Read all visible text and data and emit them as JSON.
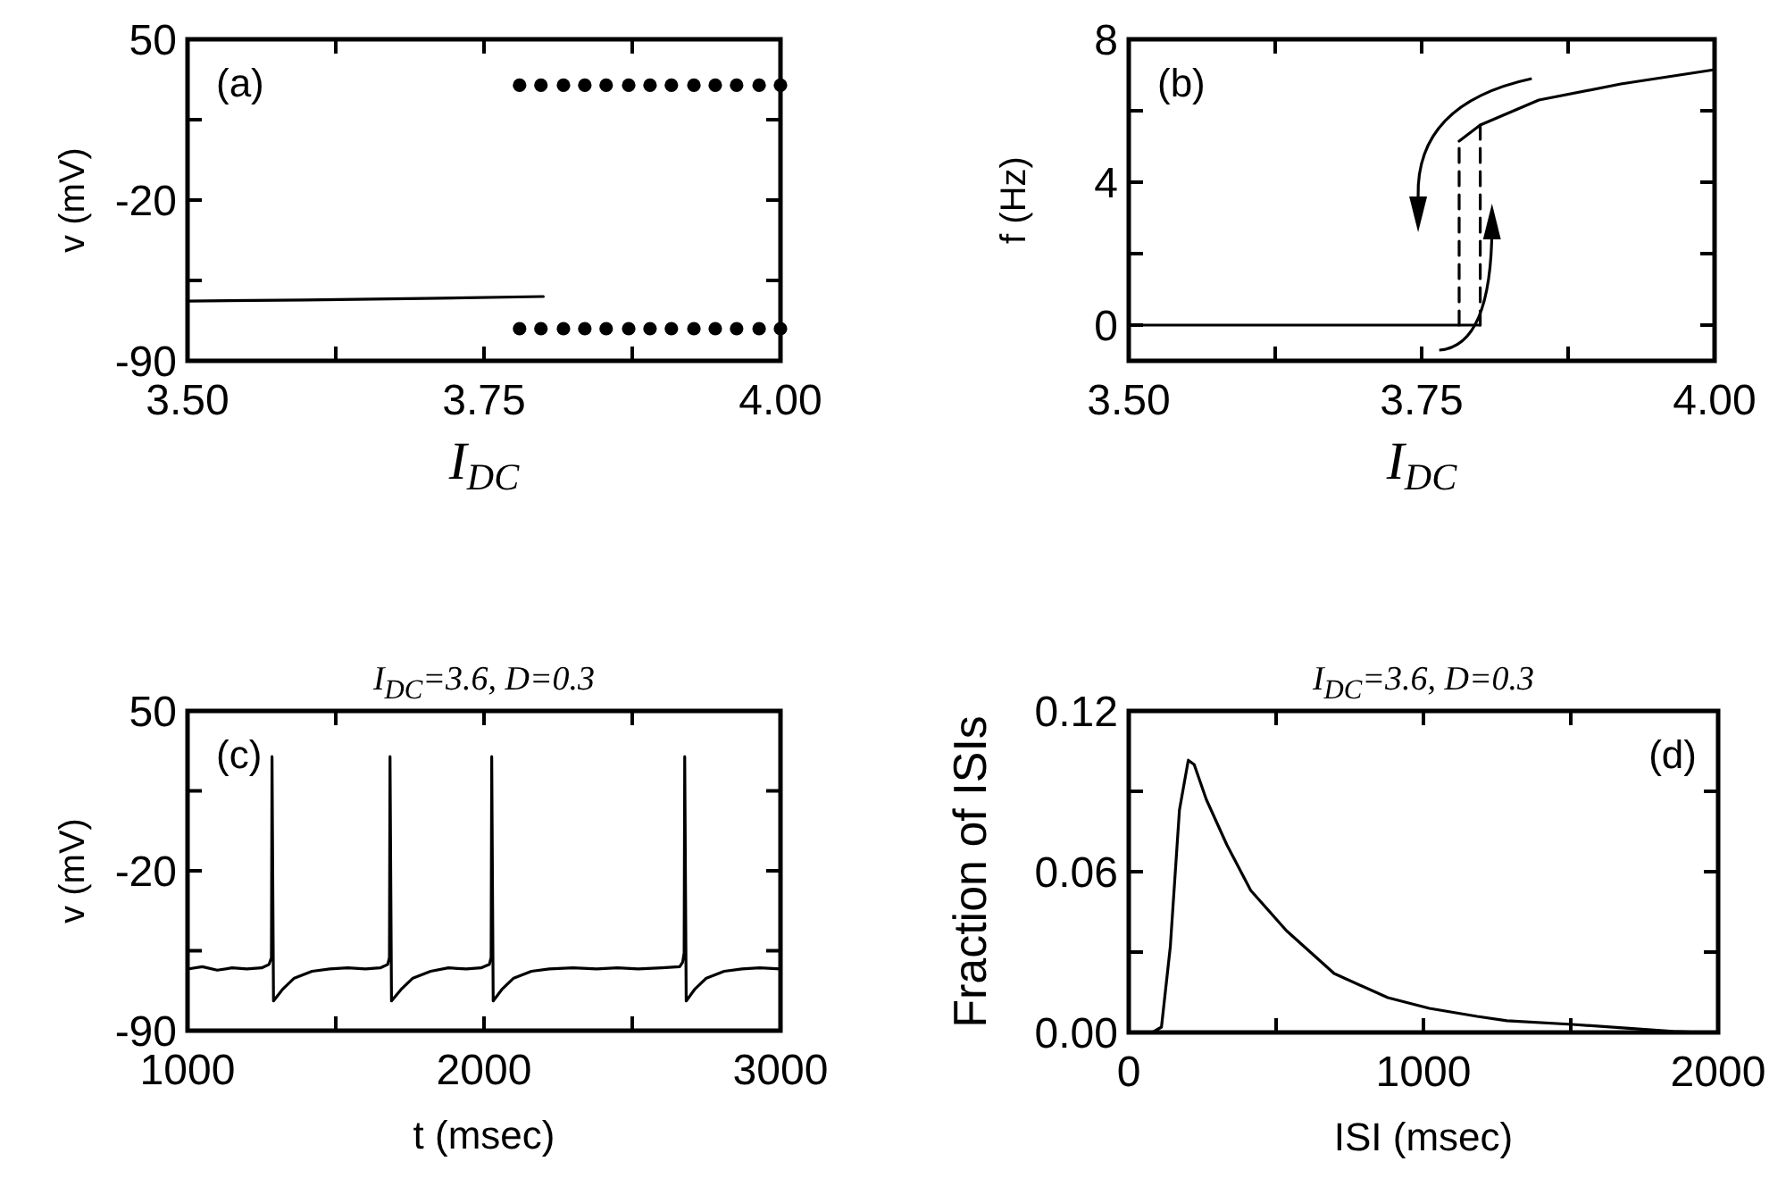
{
  "chart_data": [
    {
      "type": "line",
      "xlabel": "I$_{DC}$",
      "ylabel": "v (mV)",
      "annotations": [
        "(a)"
      ],
      "xlim": [
        3.5,
        4.0
      ],
      "ylim": [
        -90,
        50
      ],
      "xticks": [
        {
          "value": 3.5,
          "label": "3.50"
        },
        {
          "value": 3.625,
          "label": null
        },
        {
          "value": 3.75,
          "label": "3.75"
        },
        {
          "value": 3.875,
          "label": null
        },
        {
          "value": 4.0,
          "label": "4.00"
        }
      ],
      "yticks": [
        -90,
        {
          "value": -55,
          "label": null
        },
        -20,
        {
          "value": 15,
          "label": null
        },
        50
      ],
      "grid": false,
      "series": [
        {
          "color": "#000000",
          "x": [
            3.5,
            3.6,
            3.7,
            3.8
          ],
          "values": [
            -64,
            -63.5,
            -62.8,
            -62
          ]
        },
        {
          "type": "scatter",
          "marker": "circle",
          "color": "#000000",
          "x": [
            3.78,
            3.798,
            3.817,
            3.835,
            3.853,
            3.872,
            3.89,
            3.908,
            3.927,
            3.945,
            3.963,
            3.982,
            4.0
          ],
          "values": [
            30,
            30,
            30,
            30,
            30,
            30,
            30,
            30,
            30,
            30,
            30,
            30,
            30
          ]
        },
        {
          "type": "scatter",
          "marker": "circle",
          "color": "#000000",
          "x": [
            3.78,
            3.798,
            3.817,
            3.835,
            3.853,
            3.872,
            3.89,
            3.908,
            3.927,
            3.945,
            3.963,
            3.982,
            4.0
          ],
          "values": [
            -76,
            -76,
            -76,
            -76,
            -76,
            -76,
            -76,
            -76,
            -76,
            -76,
            -76,
            -76,
            -76
          ]
        }
      ]
    },
    {
      "type": "line",
      "xlabel": "I$_{DC}$",
      "ylabel": "f (Hz)",
      "annotations": [
        "(b)"
      ],
      "xlim": [
        3.5,
        4.0
      ],
      "ylim": [
        -1,
        8
      ],
      "xticks": [
        {
          "value": 3.5,
          "label": "3.50"
        },
        {
          "value": 3.625,
          "label": null
        },
        {
          "value": 3.75,
          "label": "3.75"
        },
        {
          "value": 3.875,
          "label": null
        },
        {
          "value": 4.0,
          "label": "4.00"
        }
      ],
      "yticks": [
        0,
        {
          "value": 2,
          "label": null
        },
        4,
        {
          "value": 6,
          "label": null
        },
        8
      ],
      "grid": false,
      "series": [
        {
          "color": "#000000",
          "x": [
            3.5,
            3.8
          ],
          "values": [
            0,
            0
          ]
        },
        {
          "color": "#000000",
          "x": [
            3.782,
            3.8,
            3.85,
            3.92,
            4.0
          ],
          "values": [
            5.15,
            5.6,
            6.3,
            6.75,
            7.15
          ]
        },
        {
          "color": "#000000",
          "line_style": "dashed",
          "x": [
            3.782,
            3.782
          ],
          "values": [
            0,
            5.15
          ]
        },
        {
          "color": "#000000",
          "line_style": "dashed",
          "x": [
            3.8,
            3.8
          ],
          "values": [
            0,
            5.6
          ]
        }
      ]
    },
    {
      "type": "line",
      "title": "I$_{DC}$=3.6, D=0.3",
      "xlabel": "t (msec)",
      "ylabel": "v (mV)",
      "annotations": [
        "(c)"
      ],
      "xlim": [
        1000,
        3000
      ],
      "ylim": [
        -90,
        50
      ],
      "xticks": [
        1000,
        {
          "value": 1500,
          "label": null
        },
        2000,
        {
          "value": 2500,
          "label": null
        },
        3000
      ],
      "yticks": [
        -90,
        {
          "value": -55,
          "label": null
        },
        -20,
        {
          "value": 15,
          "label": null
        },
        50
      ],
      "grid": false,
      "series": [
        {
          "color": "#000000",
          "x": [
            1000,
            1050,
            1100,
            1150,
            1200,
            1250,
            1275,
            1283,
            1285,
            1290,
            1320,
            1360,
            1420,
            1480,
            1540,
            1600,
            1650,
            1675,
            1681,
            1683,
            1688,
            1720,
            1760,
            1820,
            1880,
            1940,
            1990,
            2018,
            2024,
            2026,
            2031,
            2060,
            2100,
            2160,
            2220,
            2300,
            2380,
            2450,
            2520,
            2600,
            2660,
            2670,
            2675,
            2677,
            2682,
            2710,
            2750,
            2810,
            2870,
            2930,
            3000
          ],
          "values": [
            -63,
            -62,
            -63.5,
            -62.5,
            -63,
            -62.5,
            -61,
            -58,
            30,
            -77,
            -72,
            -67,
            -64,
            -63,
            -62.5,
            -63,
            -62.5,
            -61,
            -58,
            30,
            -77,
            -72,
            -67,
            -64,
            -62.5,
            -63,
            -62.5,
            -61,
            -58,
            30,
            -77,
            -72,
            -67,
            -64,
            -63,
            -62.5,
            -63,
            -62.5,
            -63,
            -62.5,
            -62,
            -60,
            -56,
            30,
            -77,
            -72,
            -67,
            -64,
            -63,
            -62.5,
            -63
          ]
        }
      ]
    },
    {
      "type": "line",
      "title": "I$_{DC}$=3.6, D=0.3",
      "xlabel": "ISI (msec)",
      "ylabel": "Fraction of ISIs",
      "annotations": [
        "(d)"
      ],
      "xlim": [
        0,
        2000
      ],
      "ylim": [
        0,
        0.12
      ],
      "xticks": [
        0,
        {
          "value": 500,
          "label": null
        },
        1000,
        {
          "value": 1500,
          "label": null
        },
        2000
      ],
      "yticks": [
        {
          "value": 0,
          "label": "0.00"
        },
        {
          "value": 0.03,
          "label": null
        },
        0.06,
        {
          "value": 0.09,
          "label": null
        },
        0.12
      ],
      "grid": false,
      "series": [
        {
          "color": "#000000",
          "x": [
            80,
            111,
            141,
            172,
            202,
            222,
            263,
            333,
            414,
            535,
            697,
            879,
            1020,
            1182,
            1283,
            1505,
            1687,
            1848,
            1949
          ],
          "values": [
            0,
            0.002,
            0.032,
            0.083,
            0.1016,
            0.1,
            0.087,
            0.07,
            0.053,
            0.038,
            0.022,
            0.013,
            0.009,
            0.006,
            0.0044,
            0.003,
            0.0016,
            0.0004,
            0
          ]
        }
      ]
    }
  ]
}
